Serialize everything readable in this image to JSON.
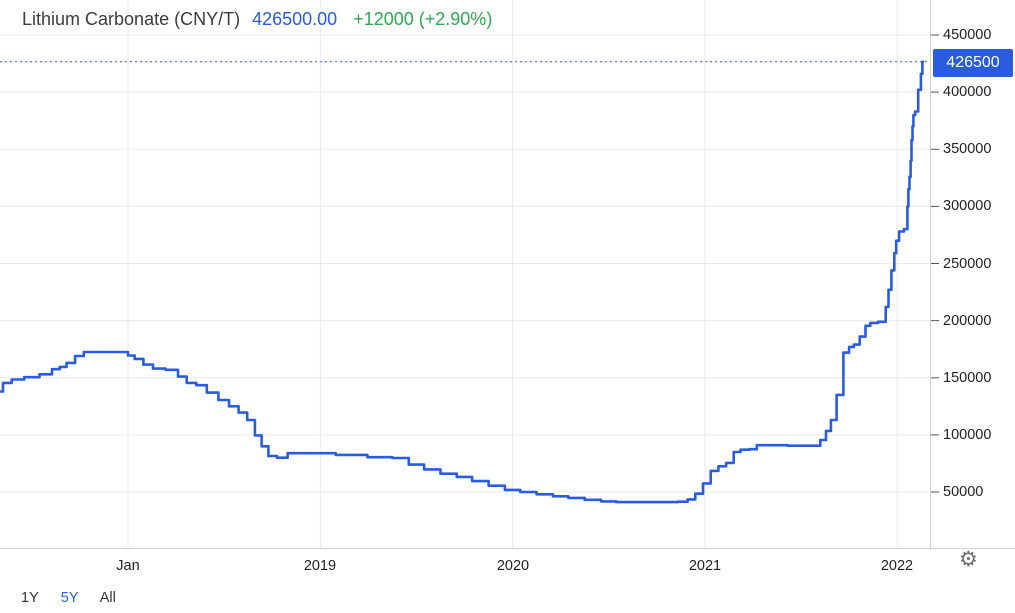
{
  "header": {
    "instrument": "Lithium Carbonate (CNY/T)",
    "price": "426500.00",
    "change": "+12000 (+2.90%)"
  },
  "price_badge": {
    "label": "426500"
  },
  "range_selector": {
    "buttons": [
      {
        "label": "1Y",
        "active": false
      },
      {
        "label": "5Y",
        "active": true
      },
      {
        "label": "All",
        "active": false
      }
    ]
  },
  "icons": {
    "settings": "gear-icon"
  },
  "colors": {
    "accent_blue": "#2a5ce0",
    "positive_green": "#2fa84f",
    "title_text": "#3d3d3d",
    "axis_text": "#222222",
    "grid": "#eaeaea",
    "axis_border": "#d2d2d2",
    "tick": "#555555",
    "badge_text": "#ffffff",
    "icon_gray": "#6f6f6f"
  },
  "chart_data": {
    "type": "line",
    "title": "Lithium Carbonate (CNY/T)",
    "ylabel": "CNY/T",
    "last_price": 426500,
    "change_abs": 12000,
    "change_pct": 2.9,
    "grid": true,
    "legend_position": "none",
    "y_axis": {
      "ticks": [
        50000,
        100000,
        150000,
        200000,
        250000,
        300000,
        350000,
        400000,
        450000
      ],
      "ylim": [
        0,
        480000
      ]
    },
    "x_axis": {
      "range_decimal_years": [
        2017.33,
        2022.17
      ],
      "ticks": [
        {
          "t": 2018.0,
          "label": "Jan"
        },
        {
          "t": 2019.0,
          "label": "2019"
        },
        {
          "t": 2020.0,
          "label": "2020"
        },
        {
          "t": 2021.0,
          "label": "2021"
        },
        {
          "t": 2022.0,
          "label": "2022"
        }
      ]
    },
    "series": [
      {
        "name": "Lithium Carbonate",
        "color": "#2a5ce0",
        "points": [
          [
            2017.33,
            138000
          ],
          [
            2017.37,
            145500
          ],
          [
            2017.42,
            148500
          ],
          [
            2017.5,
            150500
          ],
          [
            2017.58,
            153000
          ],
          [
            2017.63,
            157500
          ],
          [
            2017.66,
            159500
          ],
          [
            2017.7,
            163000
          ],
          [
            2017.75,
            169000
          ],
          [
            2017.79,
            172500
          ],
          [
            2017.98,
            172500
          ],
          [
            2018.02,
            169500
          ],
          [
            2018.05,
            166500
          ],
          [
            2018.11,
            161500
          ],
          [
            2018.15,
            158000
          ],
          [
            2018.24,
            157000
          ],
          [
            2018.28,
            151000
          ],
          [
            2018.33,
            145500
          ],
          [
            2018.38,
            143500
          ],
          [
            2018.44,
            137000
          ],
          [
            2018.5,
            130500
          ],
          [
            2018.55,
            125000
          ],
          [
            2018.6,
            119500
          ],
          [
            2018.64,
            113000
          ],
          [
            2018.68,
            99500
          ],
          [
            2018.71,
            90000
          ],
          [
            2018.75,
            81500
          ],
          [
            2018.8,
            80000
          ],
          [
            2018.86,
            84000
          ],
          [
            2019.0,
            84000
          ],
          [
            2019.16,
            82500
          ],
          [
            2019.33,
            80500
          ],
          [
            2019.42,
            79800
          ],
          [
            2019.5,
            74000
          ],
          [
            2019.58,
            69800
          ],
          [
            2019.67,
            66000
          ],
          [
            2019.75,
            63200
          ],
          [
            2019.83,
            59500
          ],
          [
            2019.92,
            55500
          ],
          [
            2020.0,
            51800
          ],
          [
            2020.08,
            50000
          ],
          [
            2020.17,
            48000
          ],
          [
            2020.25,
            46200
          ],
          [
            2020.33,
            44800
          ],
          [
            2020.42,
            43200
          ],
          [
            2020.5,
            41800
          ],
          [
            2020.58,
            41200
          ],
          [
            2020.83,
            41200
          ],
          [
            2020.89,
            41500
          ],
          [
            2020.93,
            43500
          ],
          [
            2020.97,
            48500
          ],
          [
            2021.01,
            57500
          ],
          [
            2021.05,
            68500
          ],
          [
            2021.09,
            72500
          ],
          [
            2021.13,
            75500
          ],
          [
            2021.17,
            85000
          ],
          [
            2021.2,
            87000
          ],
          [
            2021.26,
            87500
          ],
          [
            2021.28,
            91000
          ],
          [
            2021.58,
            90500
          ],
          [
            2021.62,
            95500
          ],
          [
            2021.64,
            103500
          ],
          [
            2021.67,
            113000
          ],
          [
            2021.7,
            135000
          ],
          [
            2021.74,
            172000
          ],
          [
            2021.76,
            177000
          ],
          [
            2021.79,
            179000
          ],
          [
            2021.82,
            186000
          ],
          [
            2021.85,
            195500
          ],
          [
            2021.87,
            198000
          ],
          [
            2021.93,
            199000
          ],
          [
            2021.95,
            212000
          ],
          [
            2021.96,
            227000
          ],
          [
            2021.98,
            244000
          ],
          [
            2021.99,
            259000
          ],
          [
            2022.0,
            270000
          ],
          [
            2022.02,
            278000
          ],
          [
            2022.05,
            280000
          ],
          [
            2022.056,
            300000
          ],
          [
            2022.061,
            315000
          ],
          [
            2022.067,
            326000
          ],
          [
            2022.072,
            340000
          ],
          [
            2022.077,
            358000
          ],
          [
            2022.082,
            370000
          ],
          [
            2022.087,
            380000
          ],
          [
            2022.1,
            383000
          ],
          [
            2022.118,
            402000
          ],
          [
            2022.128,
            416000
          ],
          [
            2022.134,
            426500
          ]
        ]
      }
    ]
  }
}
